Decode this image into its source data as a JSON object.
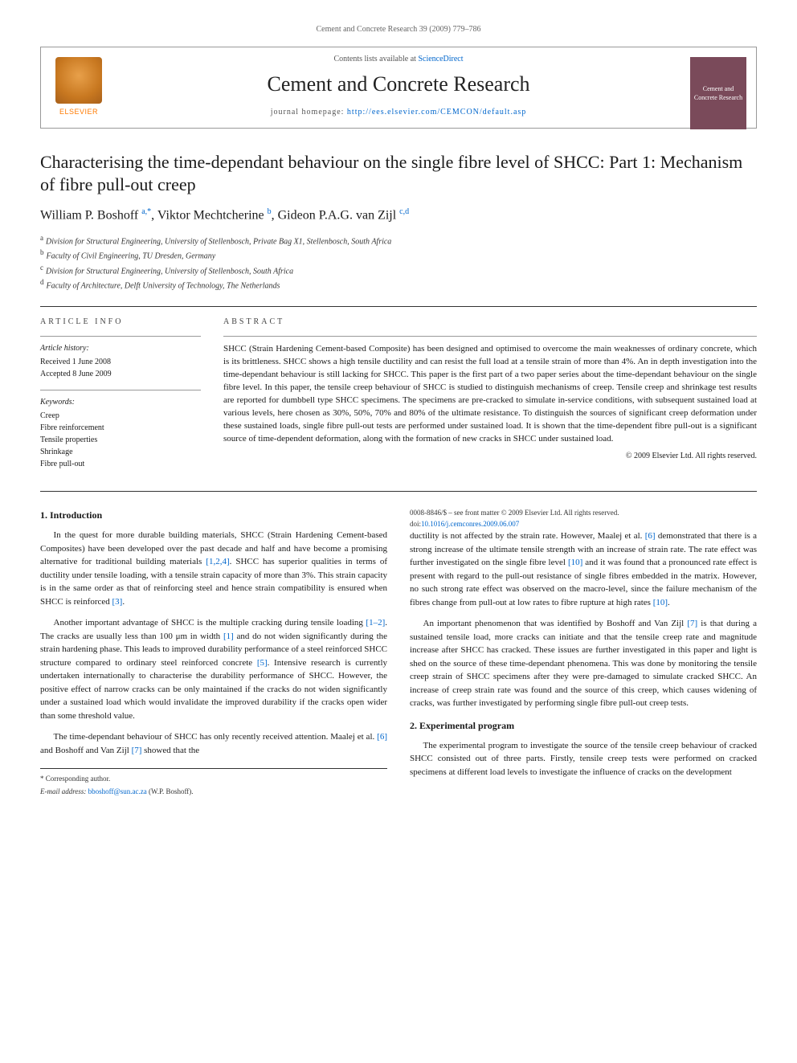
{
  "running_header": "Cement and Concrete Research 39 (2009) 779–786",
  "header": {
    "contents_prefix": "Contents lists available at ",
    "contents_link": "ScienceDirect",
    "journal_name": "Cement and Concrete Research",
    "homepage_prefix": "journal homepage: ",
    "homepage_url": "http://ees.elsevier.com/CEMCON/default.asp",
    "publisher_logo_text": "ELSEVIER",
    "cover_text": "Cement and Concrete Research"
  },
  "title": "Characterising the time-dependant behaviour on the single fibre level of SHCC: Part 1: Mechanism of fibre pull-out creep",
  "authors": {
    "list": "William P. Boshoff ",
    "a1_sup": "a,",
    "a1_star": "*",
    "sep1": ", Viktor Mechtcherine ",
    "a2_sup": "b",
    "sep2": ", Gideon P.A.G. van Zijl ",
    "a3_sup": "c,d"
  },
  "affiliations": {
    "a": "Division for Structural Engineering, University of Stellenbosch, Private Bag X1, Stellenbosch, South Africa",
    "b": "Faculty of Civil Engineering, TU Dresden, Germany",
    "c": "Division for Structural Engineering, University of Stellenbosch, South Africa",
    "d": "Faculty of Architecture, Delft University of Technology, The Netherlands"
  },
  "article_info": {
    "label": "ARTICLE INFO",
    "history_label": "Article history:",
    "received": "Received 1 June 2008",
    "accepted": "Accepted 8 June 2009",
    "keywords_label": "Keywords:",
    "keywords": [
      "Creep",
      "Fibre reinforcement",
      "Tensile properties",
      "Shrinkage",
      "Fibre pull-out"
    ]
  },
  "abstract": {
    "label": "ABSTRACT",
    "text": "SHCC (Strain Hardening Cement-based Composite) has been designed and optimised to overcome the main weaknesses of ordinary concrete, which is its brittleness. SHCC shows a high tensile ductility and can resist the full load at a tensile strain of more than 4%. An in depth investigation into the time-dependant behaviour is still lacking for SHCC. This paper is the first part of a two paper series about the time-dependant behaviour on the single fibre level. In this paper, the tensile creep behaviour of SHCC is studied to distinguish mechanisms of creep. Tensile creep and shrinkage test results are reported for dumbbell type SHCC specimens. The specimens are pre-cracked to simulate in-service conditions, with subsequent sustained load at various levels, here chosen as 30%, 50%, 70% and 80% of the ultimate resistance. To distinguish the sources of significant creep deformation under these sustained loads, single fibre pull-out tests are performed under sustained load. It is shown that the time-dependent fibre pull-out is a significant source of time-dependent deformation, along with the formation of new cracks in SHCC under sustained load.",
    "copyright": "© 2009 Elsevier Ltd. All rights reserved."
  },
  "sections": {
    "s1_title": "1. Introduction",
    "s1_p1_a": "In the quest for more durable building materials, SHCC (Strain Hardening Cement-based Composites) have been developed over the past decade and half and have become a promising alternative for traditional building materials ",
    "s1_p1_ref1": "[1,2,4]",
    "s1_p1_b": ". SHCC has superior qualities in terms of ductility under tensile loading, with a tensile strain capacity of more than 3%. This strain capacity is in the same order as that of reinforcing steel and hence strain compatibility is ensured when SHCC is reinforced ",
    "s1_p1_ref2": "[3]",
    "s1_p1_c": ".",
    "s1_p2_a": "Another important advantage of SHCC is the multiple cracking during tensile loading ",
    "s1_p2_ref1": "[1–2]",
    "s1_p2_b": ". The cracks are usually less than 100 μm in width ",
    "s1_p2_ref2": "[1]",
    "s1_p2_c": " and do not widen significantly during the strain hardening phase. This leads to improved durability performance of a steel reinforced SHCC structure compared to ordinary steel reinforced concrete ",
    "s1_p2_ref3": "[5]",
    "s1_p2_d": ". Intensive research is currently undertaken internationally to characterise the durability performance of SHCC. However, the positive effect of narrow cracks can be only maintained if the cracks do not widen significantly under a sustained load which would invalidate the improved durability if the cracks open wider than some threshold value.",
    "s1_p3_a": "The time-dependant behaviour of SHCC has only recently received attention. Maalej et al. ",
    "s1_p3_ref1": "[6]",
    "s1_p3_b": " and Boshoff and Van Zijl ",
    "s1_p3_ref2": "[7]",
    "s1_p3_c": " showed that the ",
    "s1_p3_d": "ductility is not affected by the strain rate. However, Maalej et al. ",
    "s1_p3_ref3": "[6]",
    "s1_p3_e": " demonstrated that there is a strong increase of the ultimate tensile strength with an increase of strain rate. The rate effect was further investigated on the single fibre level ",
    "s1_p3_ref4": "[10]",
    "s1_p3_f": " and it was found that a pronounced rate effect is present with regard to the pull-out resistance of single fibres embedded in the matrix. However, no such strong rate effect was observed on the macro-level, since the failure mechanism of the fibres change from pull-out at low rates to fibre rupture at high rates ",
    "s1_p3_ref5": "[10]",
    "s1_p3_g": ".",
    "s1_p4_a": "An important phenomenon that was identified by Boshoff and Van Zijl ",
    "s1_p4_ref1": "[7]",
    "s1_p4_b": " is that during a sustained tensile load, more cracks can initiate and that the tensile creep rate and magnitude increase after SHCC has cracked. These issues are further investigated in this paper and light is shed on the source of these time-dependant phenomena. This was done by monitoring the tensile creep strain of SHCC specimens after they were pre-damaged to simulate cracked SHCC. An increase of creep strain rate was found and the source of this creep, which causes widening of cracks, was further investigated by performing single fibre pull-out creep tests.",
    "s2_title": "2. Experimental program",
    "s2_p1": "The experimental program to investigate the source of the tensile creep behaviour of cracked SHCC consisted out of three parts. Firstly, tensile creep tests were performed on cracked specimens at different load levels to investigate the influence of cracks on the development"
  },
  "footnote": {
    "corr": "* Corresponding author.",
    "email_label": "E-mail address: ",
    "email": "bboshoff@sun.ac.za",
    "email_who": " (W.P. Boshoff)."
  },
  "footer": {
    "issn_line": "0008-8846/$ – see front matter © 2009 Elsevier Ltd. All rights reserved.",
    "doi_label": "doi:",
    "doi": "10.1016/j.cemconres.2009.06.007"
  },
  "colors": {
    "link": "#0066cc",
    "text": "#1a1a1a",
    "rule": "#333333",
    "cover_bg": "#7a4a5a",
    "elsevier_orange": "#ff7a00"
  }
}
